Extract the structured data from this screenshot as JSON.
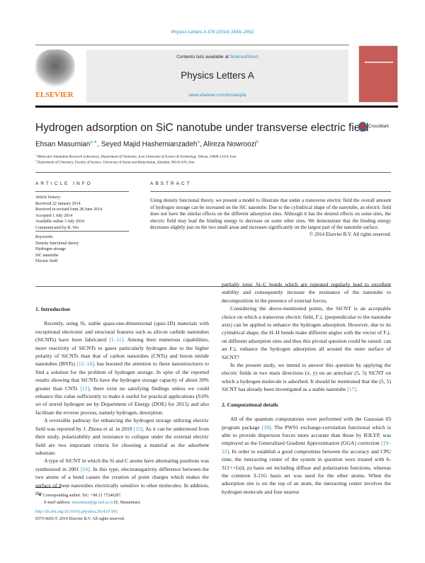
{
  "journal_ref": "Physics Letters A 378 (2014) 2549–2552",
  "header": {
    "publisher": "ELSEVIER",
    "contents_prefix": "Contents lists available at ",
    "contents_link": "ScienceDirect",
    "journal": "Physics Letters A",
    "url": "www.elsevier.com/locate/pla"
  },
  "title": "Hydrogen adsorption on SiC nanotube under transverse electric field",
  "crossmark": "CrossMark",
  "authors": [
    {
      "name": "Ehsan Masumian",
      "sup": "a,∗"
    },
    {
      "name": "Seyed Majid Hashemianzadeh",
      "sup": "a"
    },
    {
      "name": "Alireza Nowroozi",
      "sup": "b"
    }
  ],
  "affiliations": [
    {
      "mark": "a",
      "text": "Molecular Simulation Research Laboratory, Department of Chemistry, Iran University of Science & Technology, Tehran, 16846-13114, Iran"
    },
    {
      "mark": "b",
      "text": "Department of Chemistry, Faculty of Science, University of Sistan and Baluchestan, Zahedan, 98135-674, Iran"
    }
  ],
  "article_info": {
    "heading": "ARTICLE INFO",
    "history_label": "Article history:",
    "history": [
      "Received 22 January 2014",
      "Received in revised form 28 June 2014",
      "Accepted 1 July 2014",
      "Available online 3 July 2014",
      "Communicated by R. Wu"
    ],
    "keywords_label": "Keywords:",
    "keywords": [
      "Density functional theory",
      "Hydrogen storage",
      "SiC nanotube",
      "Electric field"
    ]
  },
  "abstract": {
    "heading": "ABSTRACT",
    "text": "Using density functional theory, we present a model to illustrate that under a transverse electric field the overall amount of hydrogen storage can be increased on the SiC nanotube. Due to the cylindrical shape of the nanotube, an electric field does not have the similar effects on the different adsorption sites. Although it has the desired effects on some sites, the electric field may lead the binding energy to decrease on some other sites. We demonstrate that the binding energy decreases slightly just on the two small areas and increases significantly on the largest part of the nanotube surface.",
    "copyright": "© 2014 Elsevier B.V. All rights reserved."
  },
  "body": {
    "intro_heading": "1. Introduction",
    "intro_p1_a": "Recently, using Si, stable quasi-one-dimensional (qusi-1D) materials with exceptional electronic and structural features such as silicon carbide nanotubes (SiCNTs) have been fabricated ",
    "ref_1_11": "[1–11]",
    "intro_p1_b": ". Among their numerous capabilities, more reactivity of SiCNTs to gases particularly hydrogen due to the higher polarity of SiCNTs than that of carbon nanotubes (CNTs) and boron nitride nanotubes (BNTs) ",
    "ref_12_14": "[12–14]",
    "intro_p1_c": ", has boosted the attention to these nanostructures to find a solution for the problem of hydrogen storage. In spite of the reported results showing that SiCNTs have the hydrogen storage capacity of about 20% greater than CNTs ",
    "ref_12": "[12]",
    "intro_p1_d": ", there exist no satisfying findings unless we could enhance this value sufficiently to make it useful for practical applications (9.0% wt of stored hydrogen set by Department of Energy (DOE) for 2015) and also facilitate the reverse process, namely hydrogen, desorption.",
    "intro_p2_a": "A reversible pathway for enhancing the hydrogen storage utilizing electric field was reported by J. Zhoua et al. in 2010 ",
    "ref_15": "[15]",
    "intro_p2_b": ". As it can be understood from their study, polarizability and resistance to collapse under the external electric field are two important criteria for choosing a material as the adsorbent substrate.",
    "intro_p3_a": "A type of SiCNT in which the Si and C atoms have alternating positions was synthesized in 2001 ",
    "ref_16": "[16]",
    "intro_p3_b": ". In this type, electronegativity difference between the two atoms of a bond causes the creation of point charges which makes the surface of these nanotubes electrically sensitive to other molecules. In addition, the",
    "right_p1": "partially ionic Si–C bonds which are repeated regularly lead to excellent stability and consequently increase the resistance of the nanotube to decomposition in the presence of external forces.",
    "right_p2": "Considering the above-mentioned points, the SiCNT is an acceptable choice on which a transverse electric field, F⊥ (perpendicular to the nanotube axis) can be applied to enhance the hydrogen adsorption. However, due to its cylindrical shape, the H–H bonds make different angles with the vector of F⊥ on different adsorption sites and thus this pivotal question could be raised: can an F⊥ enhance the hydrogen adsorption all around the outer surface of SiCNT?",
    "right_p3_a": "In the present study, we intend to answer this question by applying the electric fields in two main directions (x, y) on an armchair (5, 5) SiCNT on which a hydrogen molecule is adsorbed. It should be mentioned that the (5, 5) SiCNT has already been investigated as a stable nanotube ",
    "ref_17": "[17]",
    "comp_heading": "2. Computational details",
    "comp_p1_a": "All of the quantum computations were performed with the Gaussian 03 program package ",
    "ref_18": "[18]",
    "comp_p1_b": ". The PW91 exchange-correlation functional which is able to provide dispersion forces more accurate than those by B3LYP, was employed as the Generalized Gradient Approximation (GGA) correction ",
    "ref_19_22": "[19–22]",
    "comp_p1_c": ". In order to establish a good compromise between the accuracy and CPU time, the interacting center of the system in question were treated with 6-311++G(d, p) basis set including diffuse and polarization functions, whereas the common 3-21G basis set was used for the other atoms. When the adsorption site is on the top of an atom, the interacting center involves the hydrogen molecule and four nearest"
  },
  "footnote": {
    "corresponding": "∗ Corresponding author. Tel.: +98 21 77240287.",
    "email_label": "E-mail address: ",
    "email": "masumian@gs.iust.ac.ir",
    "email_suffix": " (E. Masumian).",
    "doi": "http://dx.doi.org/10.1016/j.physleta.2014.07.001",
    "issn": "0375-9601/© 2014 Elsevier B.V. All rights reserved."
  }
}
